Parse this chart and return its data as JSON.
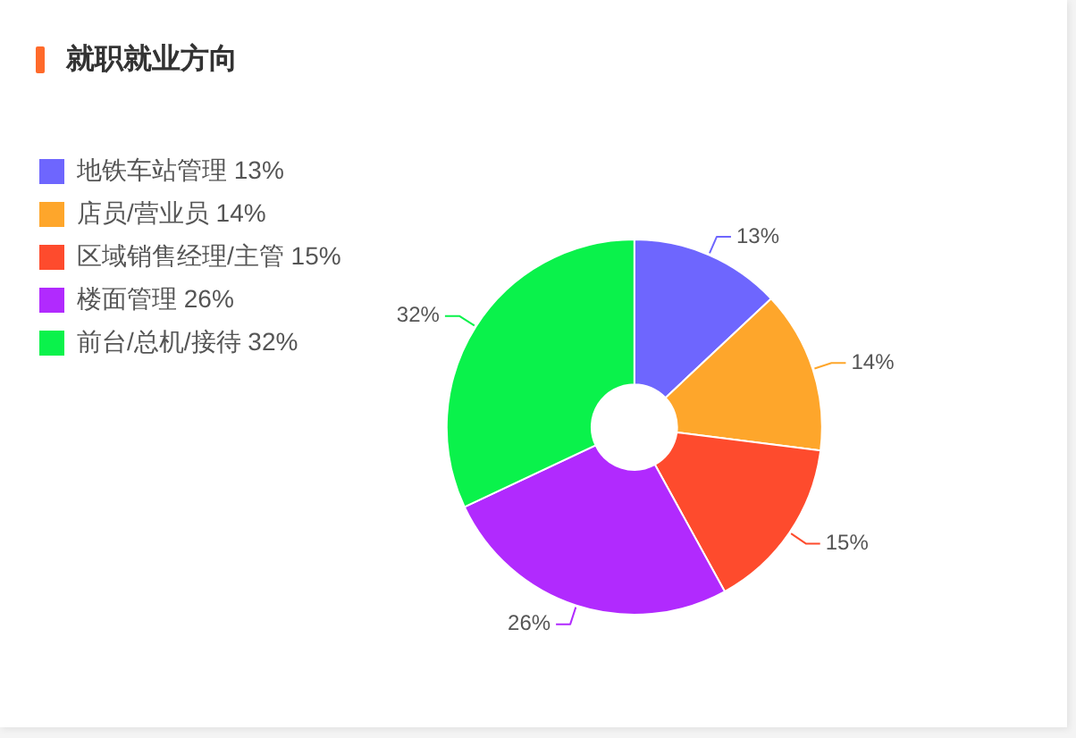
{
  "chart_data": {
    "type": "donut",
    "title": "就职就业方向",
    "categories": [
      "地铁车站管理",
      "店员/营业员",
      "区域销售经理/主管",
      "楼面管理",
      "前台/总机/接待"
    ],
    "values": [
      13,
      14,
      15,
      26,
      32
    ],
    "colors": [
      "#6e66fe",
      "#fea62b",
      "#fe4b2d",
      "#b12afe",
      "#0af24b"
    ],
    "value_labels": [
      "13%",
      "14%",
      "15%",
      "26%",
      "32%"
    ],
    "legend": "left"
  }
}
